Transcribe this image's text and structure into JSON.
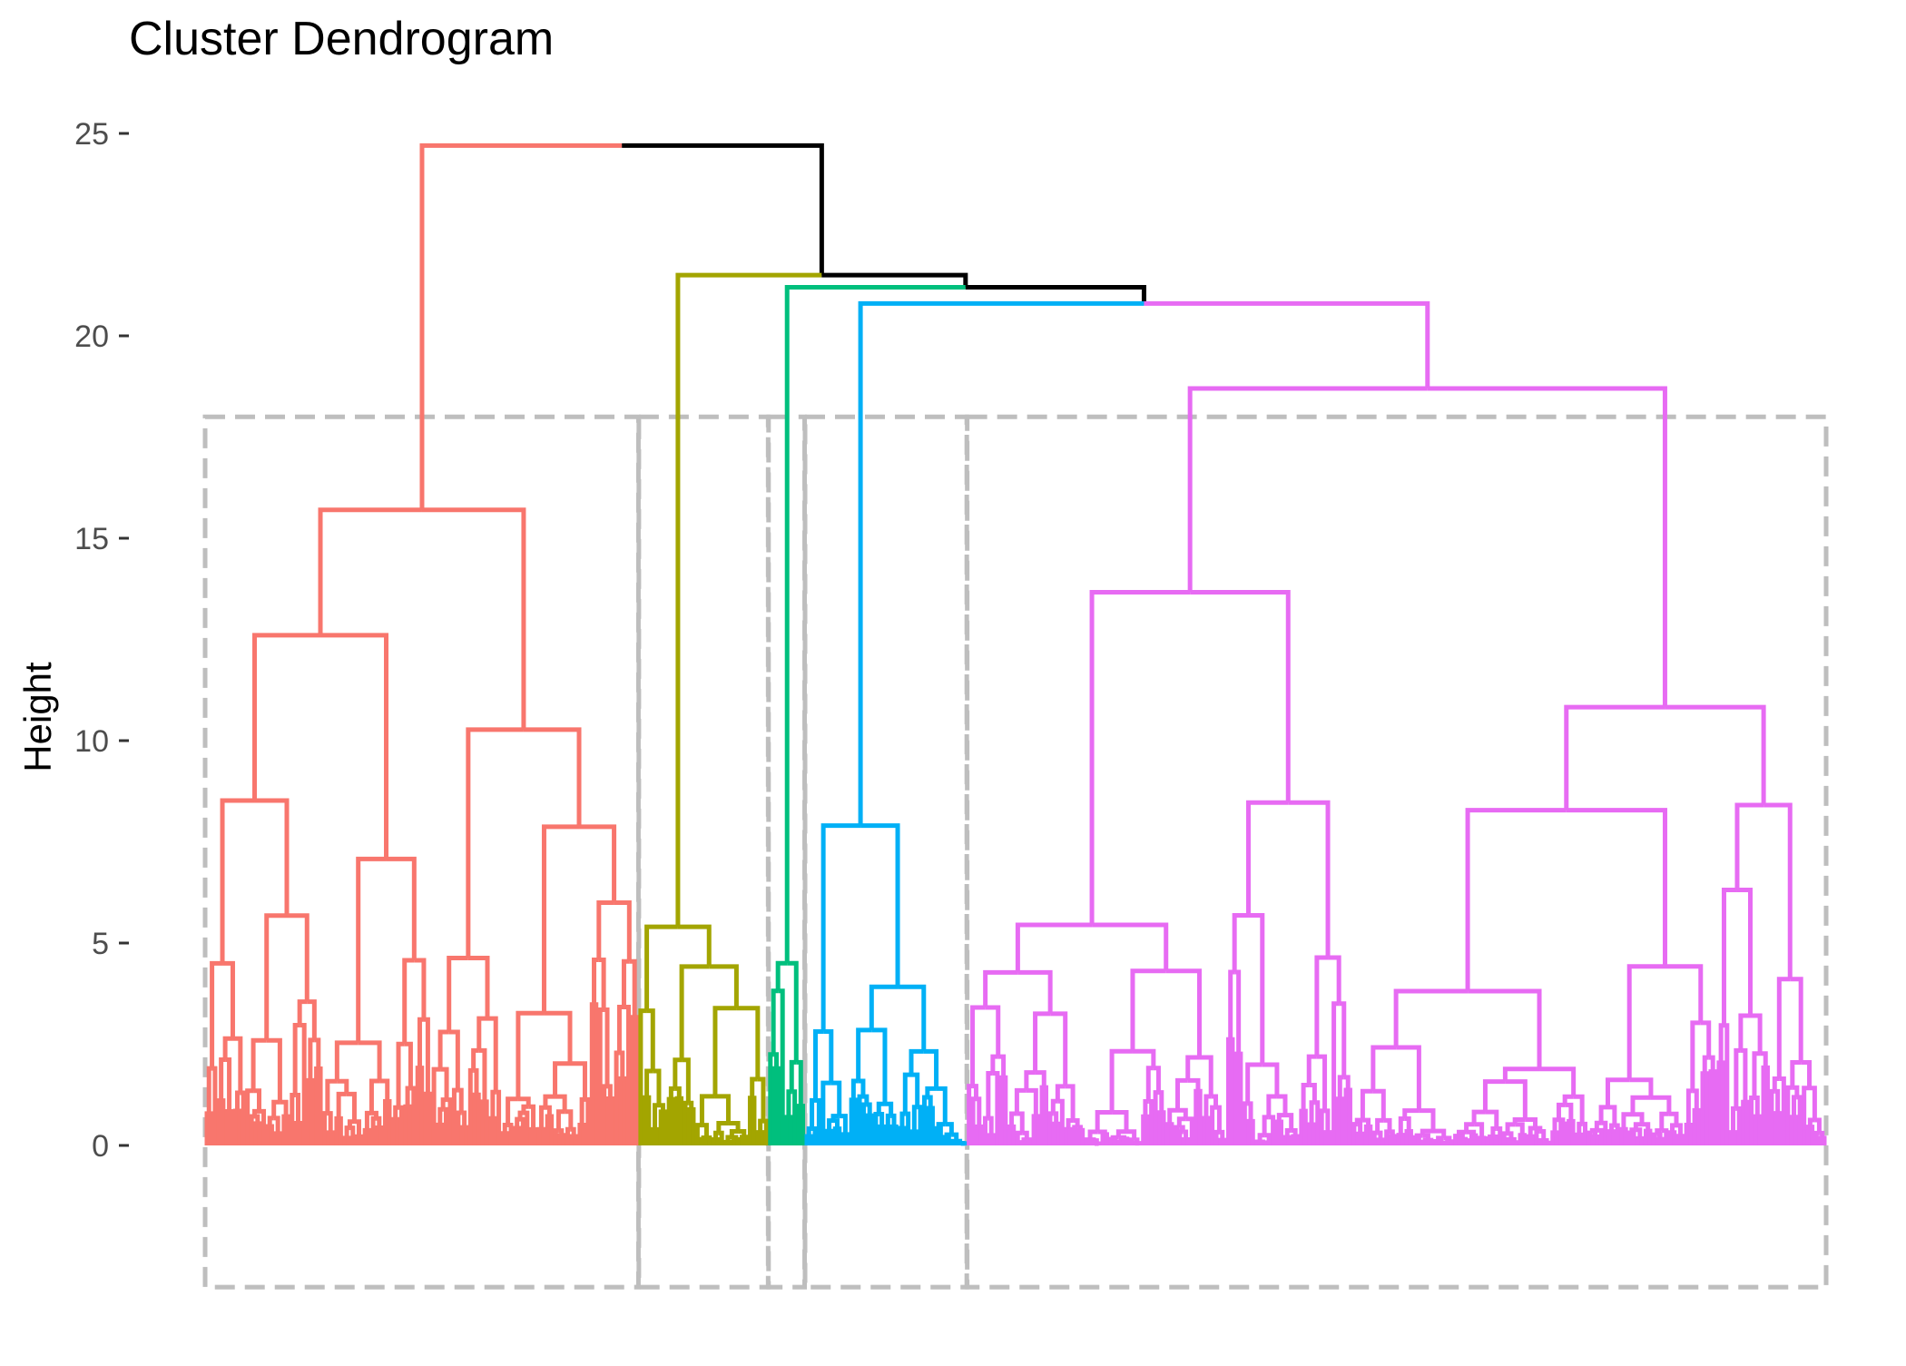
{
  "chart_data": {
    "type": "dendrogram",
    "title": "Cluster Dendrogram",
    "xlabel": "",
    "ylabel": "Height",
    "ylim": [
      -3.5,
      25
    ],
    "y_ticks": [
      0,
      5,
      10,
      15,
      20,
      25
    ],
    "y_tick_labels": [
      "0",
      "5",
      "10",
      "15",
      "20",
      "25"
    ],
    "n_leaves": 400,
    "k_clusters": 5,
    "root_height": 24.7,
    "merge_heights": {
      "root": 24.7,
      "clusters_2_to_5": 21.5,
      "clusters_3_to_5": 21.2,
      "clusters_4_to_5": 20.8
    },
    "clusters": [
      {
        "id": 1,
        "color": "#F8766D",
        "leaf_count": 107,
        "height": 15.7
      },
      {
        "id": 2,
        "color": "#A3A500",
        "leaf_count": 32,
        "height": 5.4
      },
      {
        "id": 3,
        "color": "#00BF7D",
        "leaf_count": 9,
        "height": 4.5
      },
      {
        "id": 4,
        "color": "#00B0F6",
        "leaf_count": 40,
        "height": 7.9
      },
      {
        "id": 5,
        "color": "#E76BF3",
        "leaf_count": 212,
        "height": 18.7
      }
    ],
    "connector_color": "#000000",
    "rect_border_color": "#BEBEBE",
    "rect_border_style": "dashed",
    "grid": false
  }
}
